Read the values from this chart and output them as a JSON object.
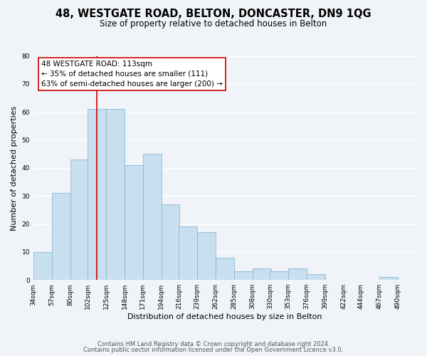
{
  "title_line1": "48, WESTGATE ROAD, BELTON, DONCASTER, DN9 1QG",
  "title_line2": "Size of property relative to detached houses in Belton",
  "xlabel": "Distribution of detached houses by size in Belton",
  "ylabel": "Number of detached properties",
  "bar_color": "#c8dff0",
  "bar_edge_color": "#8ab8d8",
  "reference_line_x": 113,
  "reference_line_color": "#cc0000",
  "annotation_title": "48 WESTGATE ROAD: 113sqm",
  "annotation_line1": "← 35% of detached houses are smaller (111)",
  "annotation_line2": "63% of semi-detached houses are larger (200) →",
  "annotation_box_color": "#ffffff",
  "annotation_box_edge": "#cc0000",
  "background_color": "#f0f4f8",
  "grid_color": "#ffffff",
  "categories": [
    "34sqm",
    "57sqm",
    "80sqm",
    "102sqm",
    "125sqm",
    "148sqm",
    "171sqm",
    "194sqm",
    "216sqm",
    "239sqm",
    "262sqm",
    "285sqm",
    "308sqm",
    "330sqm",
    "353sqm",
    "376sqm",
    "399sqm",
    "422sqm",
    "444sqm",
    "467sqm",
    "490sqm"
  ],
  "bin_edges": [
    34,
    57,
    80,
    102,
    125,
    148,
    171,
    194,
    216,
    239,
    262,
    285,
    308,
    330,
    353,
    376,
    399,
    422,
    444,
    467,
    490
  ],
  "bin_width": 23,
  "values": [
    10,
    31,
    43,
    61,
    61,
    41,
    45,
    27,
    19,
    17,
    8,
    3,
    4,
    3,
    4,
    2,
    0,
    0,
    0,
    1,
    0
  ],
  "ylim": [
    0,
    80
  ],
  "yticks": [
    0,
    10,
    20,
    30,
    40,
    50,
    60,
    70,
    80
  ],
  "footer_line1": "Contains HM Land Registry data © Crown copyright and database right 2024.",
  "footer_line2": "Contains public sector information licensed under the Open Government Licence v3.0.",
  "title_fontsize": 10.5,
  "subtitle_fontsize": 8.5,
  "axis_label_fontsize": 8,
  "tick_fontsize": 6.5,
  "annotation_fontsize": 7.5,
  "footer_fontsize": 6
}
